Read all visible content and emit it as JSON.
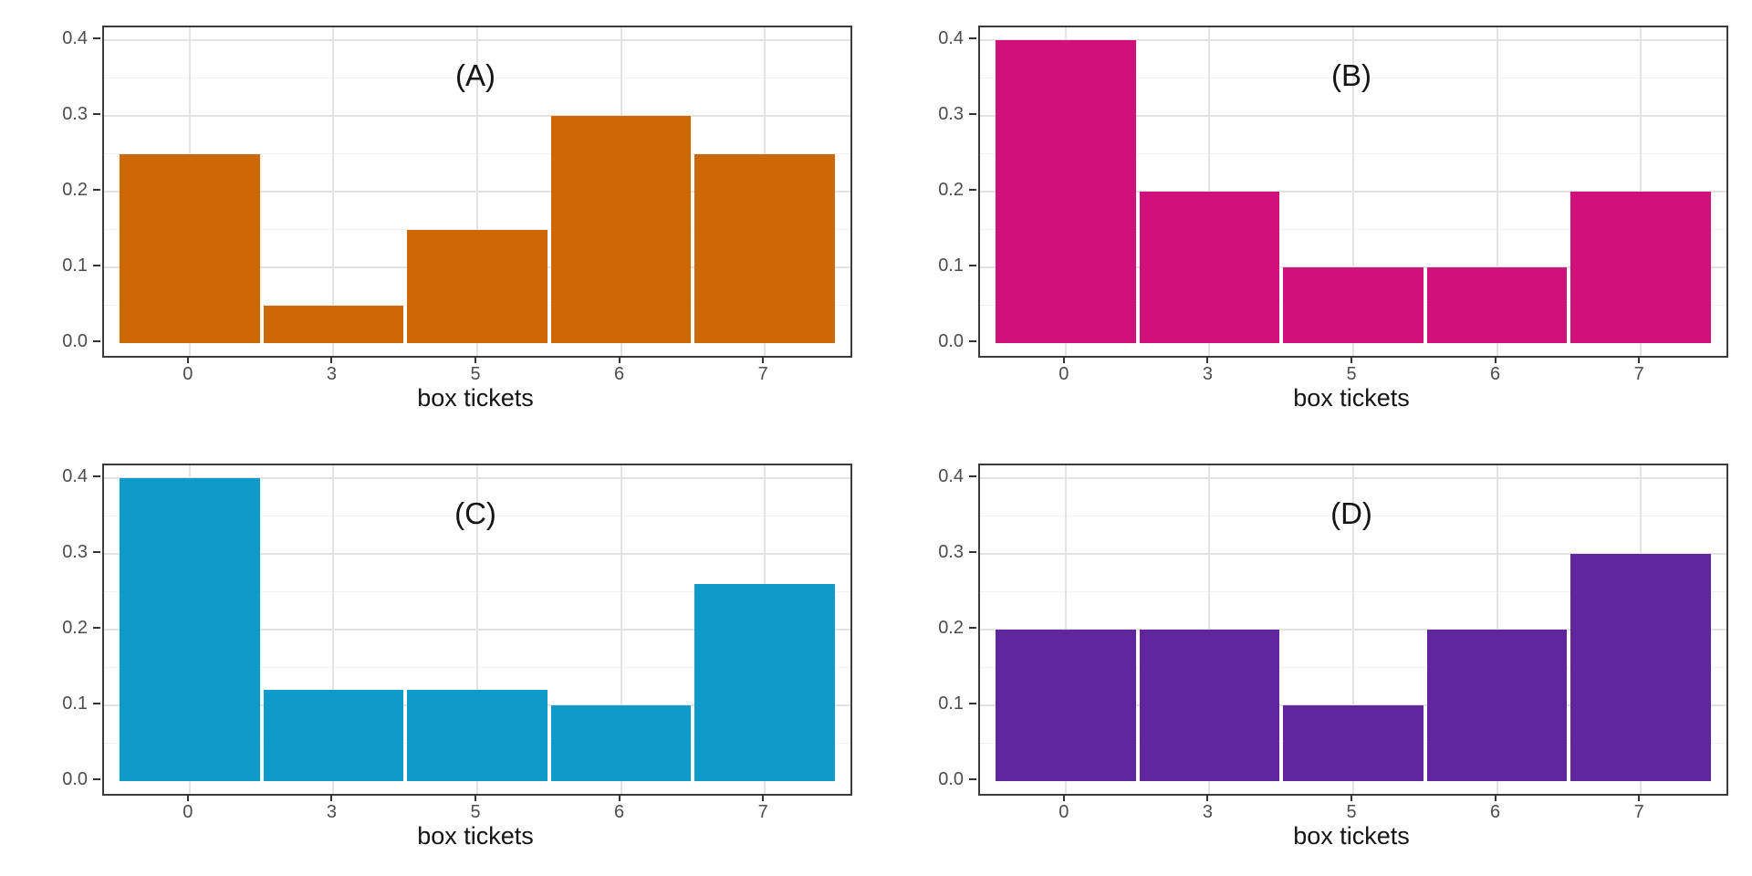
{
  "chart_data": [
    {
      "type": "bar",
      "panel": "A",
      "title": "(A)",
      "categories": [
        "0",
        "3",
        "5",
        "6",
        "7"
      ],
      "values": [
        0.25,
        0.05,
        0.15,
        0.3,
        0.25
      ],
      "xlabel": "box tickets",
      "ylabel": "",
      "ylim": [
        0,
        0.4
      ],
      "yticks": [
        "0.0",
        "0.1",
        "0.2",
        "0.3",
        "0.4"
      ],
      "bar_color": "#cc6805",
      "grid": true,
      "legend": false
    },
    {
      "type": "bar",
      "panel": "B",
      "title": "(B)",
      "categories": [
        "0",
        "3",
        "5",
        "6",
        "7"
      ],
      "values": [
        0.4,
        0.2,
        0.1,
        0.1,
        0.2
      ],
      "xlabel": "box tickets",
      "ylabel": "",
      "ylim": [
        0,
        0.4
      ],
      "yticks": [
        "0.0",
        "0.1",
        "0.2",
        "0.3",
        "0.4"
      ],
      "bar_color": "#d0117c",
      "grid": true,
      "legend": false
    },
    {
      "type": "bar",
      "panel": "C",
      "title": "(C)",
      "categories": [
        "0",
        "3",
        "5",
        "6",
        "7"
      ],
      "values": [
        0.4,
        0.12,
        0.12,
        0.1,
        0.26
      ],
      "xlabel": "box tickets",
      "ylabel": "",
      "ylim": [
        0,
        0.4
      ],
      "yticks": [
        "0.0",
        "0.1",
        "0.2",
        "0.3",
        "0.4"
      ],
      "bar_color": "#0e9bcc",
      "grid": true,
      "legend": false
    },
    {
      "type": "bar",
      "panel": "D",
      "title": "(D)",
      "categories": [
        "0",
        "3",
        "5",
        "6",
        "7"
      ],
      "values": [
        0.2,
        0.2,
        0.1,
        0.2,
        0.3
      ],
      "xlabel": "box tickets",
      "ylabel": "",
      "ylim": [
        0,
        0.4
      ],
      "yticks": [
        "0.0",
        "0.1",
        "0.2",
        "0.3",
        "0.4"
      ],
      "bar_color": "#61259e",
      "grid": true,
      "legend": false
    }
  ],
  "style_colors": {
    "major_grid": "#e3e3e3",
    "minor_grid": "#f1f1f1",
    "panel_border": "#3c3c3c",
    "tick_text": "#4d4d4d",
    "title_text": "#141414"
  }
}
